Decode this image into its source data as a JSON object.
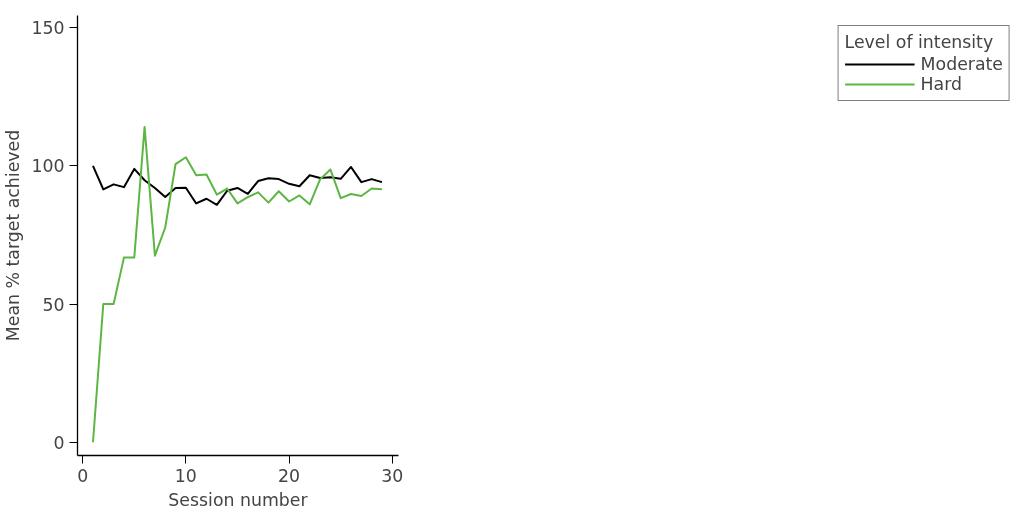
{
  "chart_data": {
    "type": "line",
    "xlabel": "Session number",
    "ylabel": "Mean % target achieved",
    "legend_title": "Level of intensity",
    "legend": "right",
    "grid": false,
    "x": [
      1,
      2,
      3,
      4,
      5,
      6,
      7,
      8,
      9,
      10,
      11,
      12,
      13,
      14,
      15,
      16,
      17,
      18,
      19,
      20,
      21,
      22,
      23,
      24,
      25,
      26,
      27,
      28,
      29
    ],
    "xlim": [
      -0.5,
      30.6
    ],
    "xticks": [
      0,
      10,
      20,
      30
    ],
    "ylim": [
      -4.8,
      154.4
    ],
    "yticks": [
      0,
      50,
      100,
      150
    ],
    "series": [
      {
        "name": "Moderate",
        "color": "#000000",
        "values": [
          100,
          91.5,
          93.3,
          92.3,
          98.9,
          94.8,
          92,
          88.7,
          92,
          92.1,
          86.4,
          88.1,
          85.9,
          91,
          92,
          89.9,
          94.5,
          95.5,
          95.2,
          93.5,
          92.6,
          96.6,
          95.6,
          95.9,
          95.3,
          99.6,
          94.1,
          95.2,
          94.1
        ]
      },
      {
        "name": "Hard",
        "color": "#5db544",
        "values": [
          0,
          50,
          50,
          66.8,
          66.8,
          114.1,
          67.5,
          77.7,
          100.6,
          103.1,
          96.6,
          96.9,
          89.6,
          91.8,
          86.4,
          88.7,
          90.4,
          86.7,
          90.8,
          87.1,
          89.3,
          86.1,
          95.1,
          98.7,
          88.3,
          89.8,
          89.1,
          91.8,
          91.5
        ]
      }
    ]
  }
}
